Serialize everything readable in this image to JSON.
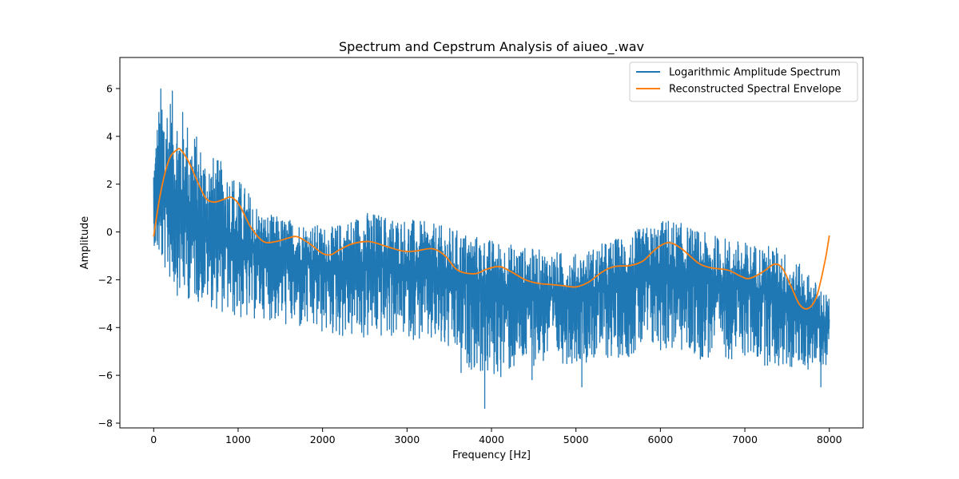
{
  "chart_data": {
    "type": "line",
    "title": "Spectrum and Cepstrum Analysis of aiueo_.wav",
    "xlabel": "Frequency [Hz]",
    "ylabel": "Amplitude",
    "xlim": [
      -400,
      8400
    ],
    "ylim": [
      -8.2,
      7.3
    ],
    "xticks": [
      0,
      1000,
      2000,
      3000,
      4000,
      5000,
      6000,
      7000,
      8000
    ],
    "xtick_labels": [
      "0",
      "1000",
      "2000",
      "3000",
      "4000",
      "5000",
      "6000",
      "7000",
      "8000"
    ],
    "yticks": [
      -8,
      -6,
      -4,
      -2,
      0,
      2,
      4,
      6
    ],
    "ytick_labels": [
      "−8",
      "−6",
      "−4",
      "−2",
      "0",
      "2",
      "4",
      "6"
    ],
    "grid": false,
    "legend_position": "upper right",
    "series": [
      {
        "name": "Logarithmic Amplitude Spectrum",
        "color": "#1f77b4",
        "kind": "noisy-spectrum",
        "center": {
          "x": [
            0,
            100,
            300,
            600,
            900,
            1100,
            1300,
            1700,
            2100,
            2500,
            3000,
            3500,
            4000,
            4500,
            5000,
            5500,
            6100,
            6500,
            7000,
            7400,
            7700,
            8000
          ],
          "y": [
            0.5,
            1.2,
            1.0,
            0.2,
            -0.3,
            -0.8,
            -1.0,
            -1.2,
            -1.4,
            -1.3,
            -1.5,
            -1.8,
            -2.3,
            -2.5,
            -2.7,
            -2.2,
            -1.6,
            -2.0,
            -2.3,
            -2.5,
            -3.2,
            -4.0
          ]
        },
        "upper": {
          "x": [
            0,
            100,
            300,
            600,
            900,
            1100,
            1300,
            1700,
            2100,
            2500,
            3000,
            3500,
            4000,
            4500,
            5000,
            5500,
            6100,
            6500,
            7000,
            7400,
            7700,
            8000
          ],
          "y": [
            4.0,
            6.6,
            5.5,
            3.5,
            2.7,
            1.9,
            0.8,
            0.5,
            0.2,
            0.9,
            0.6,
            0.2,
            -0.3,
            -0.7,
            -0.9,
            -0.2,
            0.6,
            0.0,
            -0.4,
            -0.6,
            -1.5,
            -2.7
          ]
        },
        "lower": {
          "x": [
            0,
            100,
            300,
            600,
            900,
            1100,
            1300,
            1700,
            2100,
            2500,
            3000,
            3500,
            4000,
            4500,
            5000,
            5500,
            6100,
            6500,
            7000,
            7400,
            7700,
            8000
          ],
          "y": [
            -0.5,
            -1.5,
            -2.8,
            -3.0,
            -3.6,
            -3.8,
            -3.6,
            -4.2,
            -4.4,
            -4.6,
            -4.4,
            -5.2,
            -6.3,
            -5.6,
            -5.5,
            -5.3,
            -5.0,
            -5.4,
            -5.3,
            -5.8,
            -5.8,
            -5.6
          ]
        },
        "extreme_dips": [
          {
            "x": 3920,
            "y": -7.4
          },
          {
            "x": 3640,
            "y": -5.9
          },
          {
            "x": 5070,
            "y": -6.5
          },
          {
            "x": 4480,
            "y": -6.2
          },
          {
            "x": 7900,
            "y": -6.5
          }
        ]
      },
      {
        "name": "Reconstructed Spectral Envelope",
        "color": "#ff7f0e",
        "kind": "line",
        "x": [
          0,
          80,
          180,
          280,
          330,
          420,
          520,
          620,
          720,
          820,
          920,
          1020,
          1150,
          1300,
          1450,
          1600,
          1700,
          1850,
          2000,
          2100,
          2200,
          2350,
          2550,
          2750,
          2950,
          3100,
          3300,
          3450,
          3600,
          3800,
          3950,
          4100,
          4250,
          4400,
          4550,
          4700,
          4850,
          5000,
          5150,
          5300,
          5450,
          5650,
          5800,
          5950,
          6100,
          6250,
          6450,
          6600,
          6800,
          6950,
          7050,
          7200,
          7350,
          7450,
          7550,
          7650,
          7750,
          7850,
          7950,
          8000
        ],
        "y": [
          -0.2,
          1.6,
          3.0,
          3.45,
          3.4,
          2.9,
          2.1,
          1.4,
          1.25,
          1.35,
          1.45,
          1.1,
          0.2,
          -0.4,
          -0.4,
          -0.25,
          -0.2,
          -0.5,
          -0.9,
          -0.95,
          -0.75,
          -0.5,
          -0.4,
          -0.6,
          -0.8,
          -0.8,
          -0.7,
          -1.0,
          -1.6,
          -1.75,
          -1.55,
          -1.45,
          -1.7,
          -2.0,
          -2.15,
          -2.2,
          -2.25,
          -2.3,
          -2.1,
          -1.7,
          -1.45,
          -1.4,
          -1.2,
          -0.7,
          -0.45,
          -0.7,
          -1.3,
          -1.5,
          -1.6,
          -1.85,
          -1.95,
          -1.7,
          -1.35,
          -1.55,
          -2.3,
          -3.05,
          -3.2,
          -2.7,
          -1.2,
          -0.15
        ]
      }
    ]
  }
}
